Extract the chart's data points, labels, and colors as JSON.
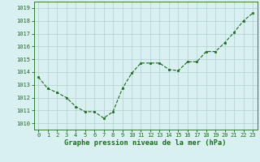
{
  "x": [
    0,
    1,
    2,
    3,
    4,
    5,
    6,
    7,
    8,
    9,
    10,
    11,
    12,
    13,
    14,
    15,
    16,
    17,
    18,
    19,
    20,
    21,
    22,
    23
  ],
  "y": [
    1013.6,
    1012.7,
    1012.4,
    1012.0,
    1011.3,
    1010.9,
    1010.9,
    1010.4,
    1010.9,
    1012.7,
    1013.9,
    1014.7,
    1014.7,
    1014.7,
    1014.2,
    1014.1,
    1014.8,
    1014.8,
    1015.6,
    1015.6,
    1016.3,
    1017.1,
    1018.0,
    1018.6
  ],
  "ylim": [
    1009.5,
    1019.5
  ],
  "yticks": [
    1010,
    1011,
    1012,
    1013,
    1014,
    1015,
    1016,
    1017,
    1018,
    1019
  ],
  "line_color": "#1a6b1a",
  "marker_color": "#1a6b1a",
  "bg_color": "#d8f0f0",
  "grid_color": "#b0d0d0",
  "xlabel": "Graphe pression niveau de la mer (hPa)",
  "xlabel_color": "#1a6b1a",
  "tick_color": "#1a6b1a",
  "spine_color": "#1a6b1a",
  "tick_fontsize": 5.0,
  "xlabel_fontsize": 6.2
}
